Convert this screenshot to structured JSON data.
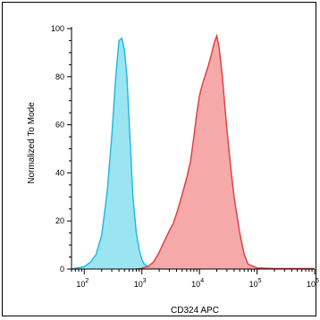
{
  "chart_data": {
    "type": "area",
    "title": "",
    "xlabel": "CD324 APC",
    "ylabel": "Normalized To Mode",
    "x_scale": "log",
    "xlim": [
      60,
      1000000
    ],
    "ylim": [
      0,
      100
    ],
    "y_ticks": [
      0,
      20,
      40,
      60,
      80,
      100
    ],
    "x_ticks": [
      {
        "value": 100,
        "base": "10",
        "exp": "2"
      },
      {
        "value": 1000,
        "base": "10",
        "exp": "3"
      },
      {
        "value": 10000,
        "base": "10",
        "exp": "4"
      },
      {
        "value": 100000,
        "base": "10",
        "exp": "5"
      },
      {
        "value": 1000000,
        "base": "10",
        "exp": "6"
      }
    ],
    "grid": false,
    "legend": "none",
    "series": [
      {
        "color": "#1ab8e0",
        "fill": "#8adff0",
        "x": [
          60,
          100,
          130,
          160,
          200,
          250,
          300,
          350,
          400,
          450,
          500,
          550,
          600,
          650,
          700,
          800,
          900,
          1000,
          1100,
          1300,
          1600,
          2000,
          3000
        ],
        "y": [
          0,
          1,
          3,
          6,
          14,
          32,
          55,
          79,
          95,
          96,
          91,
          80,
          62,
          45,
          30,
          15,
          8,
          4,
          2,
          1,
          0.5,
          0.2,
          0
        ]
      },
      {
        "color": "#e03a3a",
        "fill": "#f59a9a",
        "x": [
          800,
          1000,
          1300,
          1600,
          2000,
          2500,
          3000,
          3500,
          4000,
          5000,
          6000,
          7000,
          8000,
          9000,
          10000,
          11000,
          12000,
          14000,
          16000,
          18000,
          20000,
          22000,
          25000,
          28000,
          30000,
          35000,
          40000,
          50000,
          60000,
          70000,
          100000,
          200000,
          1000000
        ],
        "y": [
          0,
          0.3,
          1.2,
          3,
          7,
          12,
          16,
          19,
          23,
          31,
          38,
          45,
          55,
          65,
          72,
          76,
          79,
          84,
          89,
          94,
          97,
          92,
          80,
          66,
          58,
          42,
          30,
          15,
          6,
          2,
          0.5,
          0.2,
          0.2
        ]
      }
    ]
  }
}
